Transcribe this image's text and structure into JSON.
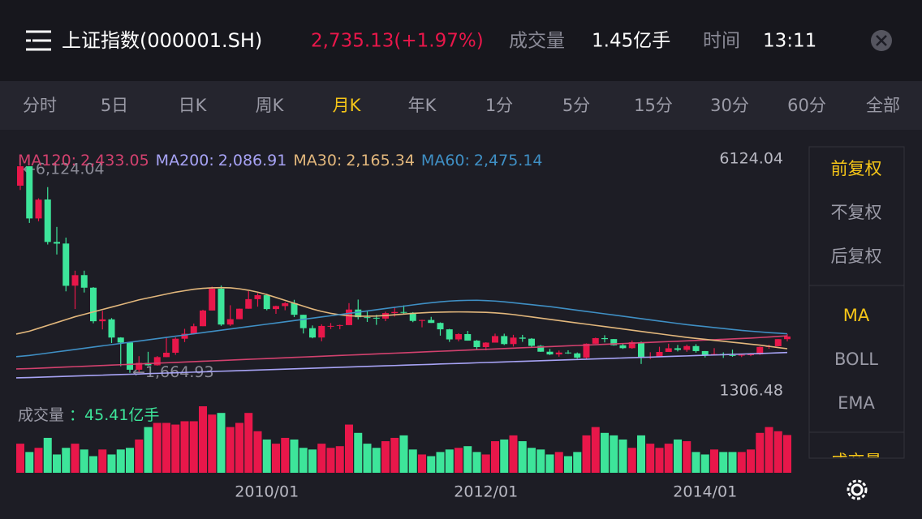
{
  "header": {
    "title": "上证指数(000001.SH)",
    "price": "2,735.13(+1.97%)",
    "volume_caption": "成交量",
    "volume": "1.45亿手",
    "time_caption": "时间",
    "time": "13:11"
  },
  "tabs": {
    "items": [
      "分时",
      "5日",
      "日K",
      "周K",
      "月K",
      "年K",
      "1分",
      "5分",
      "15分",
      "30分",
      "60分",
      "全部"
    ],
    "active": "月K"
  },
  "side_panel": {
    "adjust": [
      "前复权",
      "不复权",
      "后复权"
    ],
    "active_adjust": "前复权",
    "indicators": [
      "MA",
      "BOLL",
      "EMA"
    ],
    "active_indicator": "MA",
    "cut_item": "成交量"
  },
  "chart_data": {
    "type": "candlestick",
    "ylim": [
      1306.48,
      6124.04
    ],
    "yticks": [
      6124.04,
      1306.48
    ],
    "up_color": "#e8174a",
    "down_color": "#3de59a",
    "categories": [
      null,
      null,
      null,
      null,
      null,
      null,
      null,
      null,
      null,
      null,
      null,
      null,
      null,
      null,
      null,
      null,
      null,
      null,
      null,
      null,
      null,
      null,
      null,
      null,
      null,
      null,
      null,
      "2010/01",
      null,
      null,
      null,
      null,
      null,
      null,
      null,
      null,
      null,
      null,
      null,
      null,
      null,
      null,
      null,
      null,
      null,
      null,
      null,
      null,
      null,
      null,
      null,
      "2012/01",
      null,
      null,
      null,
      null,
      null,
      null,
      null,
      null,
      null,
      null,
      null,
      null,
      null,
      null,
      null,
      null,
      null,
      null,
      null,
      null,
      null,
      null,
      null,
      "2014/01",
      null,
      null,
      null,
      null,
      null,
      null,
      null,
      null,
      null
    ],
    "ohlc": [
      [
        5552,
        6124.04,
        5462,
        5955
      ],
      [
        5955,
        5956,
        4778,
        4871
      ],
      [
        4871,
        5290,
        4812,
        5262
      ],
      [
        5265,
        5522,
        4330,
        4383
      ],
      [
        4383,
        4695,
        4123,
        4348
      ],
      [
        4350,
        4473,
        3357,
        3472
      ],
      [
        3475,
        3786,
        2990,
        3693
      ],
      [
        3694,
        3786,
        3333,
        3433
      ],
      [
        3433,
        3445,
        2693,
        2736
      ],
      [
        2736,
        2952,
        2566,
        2775
      ],
      [
        2775,
        2801,
        2284,
        2397
      ],
      [
        2397,
        2404,
        1802,
        2293
      ],
      [
        2293,
        2293,
        1664.93,
        1729
      ],
      [
        1729,
        2010,
        1678,
        1871
      ],
      [
        1871,
        2101,
        1814,
        1821
      ],
      [
        1821,
        2012,
        1814,
        1991
      ],
      [
        1991,
        2403,
        1991,
        2082
      ],
      [
        2082,
        2402,
        2038,
        2373
      ],
      [
        2373,
        2579,
        2303,
        2477
      ],
      [
        2477,
        2688,
        2461,
        2633
      ],
      [
        2633,
        2975,
        2633,
        2959
      ],
      [
        2959,
        3455,
        2959,
        3412
      ],
      [
        3412,
        3478,
        2639,
        2667
      ],
      [
        2667,
        3068,
        2639,
        2779
      ],
      [
        2779,
        3000,
        2779,
        2996
      ],
      [
        2996,
        3361,
        2996,
        3195
      ],
      [
        3195,
        3319,
        3039,
        3277
      ],
      [
        3277,
        3306,
        2963,
        2989
      ],
      [
        2989,
        3060,
        2890,
        3051
      ],
      [
        3051,
        3134,
        2965,
        3110
      ],
      [
        3110,
        3181,
        2822,
        2870
      ],
      [
        2870,
        2871,
        2481,
        2592
      ],
      [
        2592,
        2648,
        2382,
        2398
      ],
      [
        2398,
        2672,
        2320,
        2638
      ],
      [
        2638,
        2698,
        2573,
        2639
      ],
      [
        2639,
        2665,
        2569,
        2656
      ],
      [
        2656,
        3112,
        2656,
        2979
      ],
      [
        2979,
        3186,
        2774,
        2820
      ],
      [
        2820,
        2940,
        2721,
        2808
      ],
      [
        2808,
        2870,
        2661,
        2791
      ],
      [
        2791,
        2935,
        2738,
        2905
      ],
      [
        2905,
        3016,
        2833,
        2928
      ],
      [
        2928,
        3067,
        2887,
        2911
      ],
      [
        2911,
        2925,
        2717,
        2743
      ],
      [
        2743,
        2767,
        2610,
        2762
      ],
      [
        2762,
        2827,
        2701,
        2701
      ],
      [
        2701,
        2712,
        2437,
        2568
      ],
      [
        2568,
        2577,
        2307,
        2359
      ],
      [
        2359,
        2487,
        2319,
        2469
      ],
      [
        2469,
        2536,
        2333,
        2333
      ],
      [
        2333,
        2346,
        2149,
        2199
      ],
      [
        2199,
        2300,
        2132,
        2292
      ],
      [
        2292,
        2479,
        2292,
        2428
      ],
      [
        2428,
        2478,
        2242,
        2262
      ],
      [
        2262,
        2454,
        2210,
        2396
      ],
      [
        2396,
        2453,
        2308,
        2373
      ],
      [
        2373,
        2386,
        2185,
        2225
      ],
      [
        2225,
        2242,
        2100,
        2103
      ],
      [
        2103,
        2161,
        2035,
        2047
      ],
      [
        2047,
        2127,
        1999,
        2086
      ],
      [
        2086,
        2133,
        2058,
        2069
      ],
      [
        2069,
        2087,
        1960,
        1980
      ],
      [
        1980,
        2276,
        1949,
        2269
      ],
      [
        2269,
        2396,
        2268,
        2385
      ],
      [
        2385,
        2445,
        2296,
        2365
      ],
      [
        2365,
        2366,
        2229,
        2237
      ],
      [
        2237,
        2269,
        2161,
        2177
      ],
      [
        2177,
        2335,
        2164,
        2301
      ],
      [
        2301,
        2315,
        1849,
        1979
      ],
      [
        1979,
        2092,
        1951,
        1994
      ],
      [
        1994,
        2206,
        1990,
        2098
      ],
      [
        2098,
        2270,
        2098,
        2175
      ],
      [
        2175,
        2243,
        2109,
        2141
      ],
      [
        2141,
        2251,
        2101,
        2220
      ],
      [
        2220,
        2260,
        2083,
        2116
      ],
      [
        2116,
        2117,
        1984,
        2033
      ],
      [
        2033,
        2177,
        2033,
        2056
      ],
      [
        2056,
        2089,
        1975,
        2033
      ],
      [
        2033,
        2146,
        1998,
        2026
      ],
      [
        2026,
        2062,
        1991,
        2039
      ],
      [
        2039,
        2076,
        2011,
        2048
      ],
      [
        2048,
        2210,
        2036,
        2202
      ],
      [
        2202,
        2248,
        2165,
        2217
      ],
      [
        2217,
        2365,
        2217,
        2364
      ],
      [
        2364,
        2471,
        2318,
        2420
      ]
    ],
    "annotations": [
      {
        "value": 6124.04,
        "label": "←6,124.04"
      },
      {
        "value": 1664.93,
        "label": "←1,664.93"
      }
    ],
    "series": [
      {
        "name": "MA120:",
        "value_label": "2,433.05",
        "color": "#d2416e",
        "values": [
          1745,
          1753,
          1761,
          1769,
          1777,
          1785,
          1793,
          1801,
          1809,
          1817,
          1825,
          1833,
          1841,
          1849,
          1857,
          1865,
          1873,
          1881,
          1889,
          1897,
          1905,
          1913,
          1921,
          1929,
          1937,
          1945,
          1953,
          1961,
          1969,
          1977,
          1985,
          1993,
          2001,
          2009,
          2017,
          2025,
          2033,
          2041,
          2049,
          2057,
          2065,
          2073,
          2081,
          2089,
          2097,
          2105,
          2113,
          2121,
          2129,
          2137,
          2145,
          2153,
          2161,
          2169,
          2177,
          2185,
          2193,
          2201,
          2209,
          2217,
          2225,
          2233,
          2241,
          2249,
          2257,
          2265,
          2273,
          2281,
          2289,
          2297,
          2305,
          2313,
          2321,
          2329,
          2337,
          2345,
          2353,
          2361,
          2369,
          2377,
          2385,
          2397,
          2409,
          2421,
          2433.05
        ]
      },
      {
        "name": "MA200:",
        "value_label": "2,086.91",
        "color": "#a7a3f5",
        "values": [
          1560,
          1566,
          1573,
          1579,
          1585,
          1591,
          1598,
          1604,
          1610,
          1616,
          1623,
          1629,
          1635,
          1641,
          1648,
          1654,
          1660,
          1666,
          1673,
          1679,
          1685,
          1691,
          1698,
          1704,
          1710,
          1716,
          1723,
          1729,
          1735,
          1741,
          1748,
          1754,
          1760,
          1766,
          1773,
          1779,
          1785,
          1791,
          1798,
          1804,
          1810,
          1816,
          1823,
          1829,
          1835,
          1841,
          1848,
          1854,
          1860,
          1866,
          1873,
          1879,
          1885,
          1891,
          1898,
          1904,
          1910,
          1916,
          1923,
          1929,
          1935,
          1941,
          1948,
          1954,
          1960,
          1966,
          1973,
          1979,
          1985,
          1991,
          1998,
          2004,
          2010,
          2016,
          2023,
          2029,
          2035,
          2041,
          2048,
          2054,
          2060,
          2066,
          2073,
          2080,
          2086.91
        ]
      },
      {
        "name": "MA30:",
        "value_label": "2,165.34",
        "color": "#e2b77c",
        "values": [
          2470,
          2530,
          2590,
          2650,
          2710,
          2770,
          2830,
          2880,
          2930,
          2980,
          3030,
          3080,
          3130,
          3180,
          3220,
          3260,
          3300,
          3340,
          3370,
          3400,
          3420,
          3430,
          3435,
          3430,
          3410,
          3380,
          3340,
          3290,
          3230,
          3170,
          3110,
          3050,
          2990,
          2940,
          2900,
          2870,
          2850,
          2840,
          2840,
          2845,
          2855,
          2870,
          2885,
          2900,
          2910,
          2920,
          2925,
          2928,
          2930,
          2928,
          2925,
          2920,
          2910,
          2895,
          2875,
          2850,
          2825,
          2800,
          2775,
          2750,
          2725,
          2700,
          2675,
          2650,
          2625,
          2600,
          2575,
          2550,
          2525,
          2500,
          2475,
          2450,
          2425,
          2400,
          2380,
          2360,
          2340,
          2320,
          2300,
          2280,
          2260,
          2240,
          2215,
          2190,
          2165.34
        ]
      },
      {
        "name": "MA60:",
        "value_label": "2,475.14",
        "color": "#3f8fc4",
        "values": [
          2000,
          2025,
          2050,
          2075,
          2100,
          2125,
          2150,
          2175,
          2200,
          2225,
          2250,
          2275,
          2300,
          2325,
          2350,
          2375,
          2400,
          2425,
          2450,
          2475,
          2500,
          2525,
          2550,
          2575,
          2600,
          2625,
          2650,
          2675,
          2700,
          2725,
          2750,
          2775,
          2800,
          2825,
          2850,
          2875,
          2900,
          2925,
          2950,
          2975,
          3000,
          3025,
          3050,
          3075,
          3100,
          3120,
          3140,
          3155,
          3165,
          3170,
          3172,
          3165,
          3155,
          3140,
          3120,
          3100,
          3080,
          3060,
          3040,
          3015,
          2990,
          2965,
          2940,
          2915,
          2890,
          2865,
          2840,
          2815,
          2790,
          2765,
          2740,
          2715,
          2690,
          2665,
          2645,
          2625,
          2605,
          2585,
          2565,
          2545,
          2530,
          2515,
          2500,
          2488,
          2475.14
        ]
      }
    ],
    "volume": {
      "caption": "成交量",
      "value_label": "：45.41亿手",
      "values": [
        35,
        25,
        30,
        42,
        22,
        30,
        35,
        28,
        20,
        28,
        22,
        28,
        30,
        40,
        55,
        60,
        60,
        58,
        62,
        62,
        80,
        70,
        72,
        55,
        60,
        72,
        50,
        40,
        35,
        42,
        40,
        30,
        28,
        35,
        30,
        32,
        58,
        48,
        35,
        30,
        38,
        42,
        45,
        28,
        22,
        20,
        25,
        28,
        30,
        32,
        25,
        22,
        38,
        40,
        45,
        38,
        30,
        28,
        22,
        25,
        20,
        25,
        45,
        55,
        48,
        45,
        40,
        30,
        45,
        35,
        30,
        35,
        40,
        38,
        25,
        22,
        28,
        25,
        25,
        25,
        28,
        48,
        55,
        50,
        45.41
      ]
    }
  }
}
